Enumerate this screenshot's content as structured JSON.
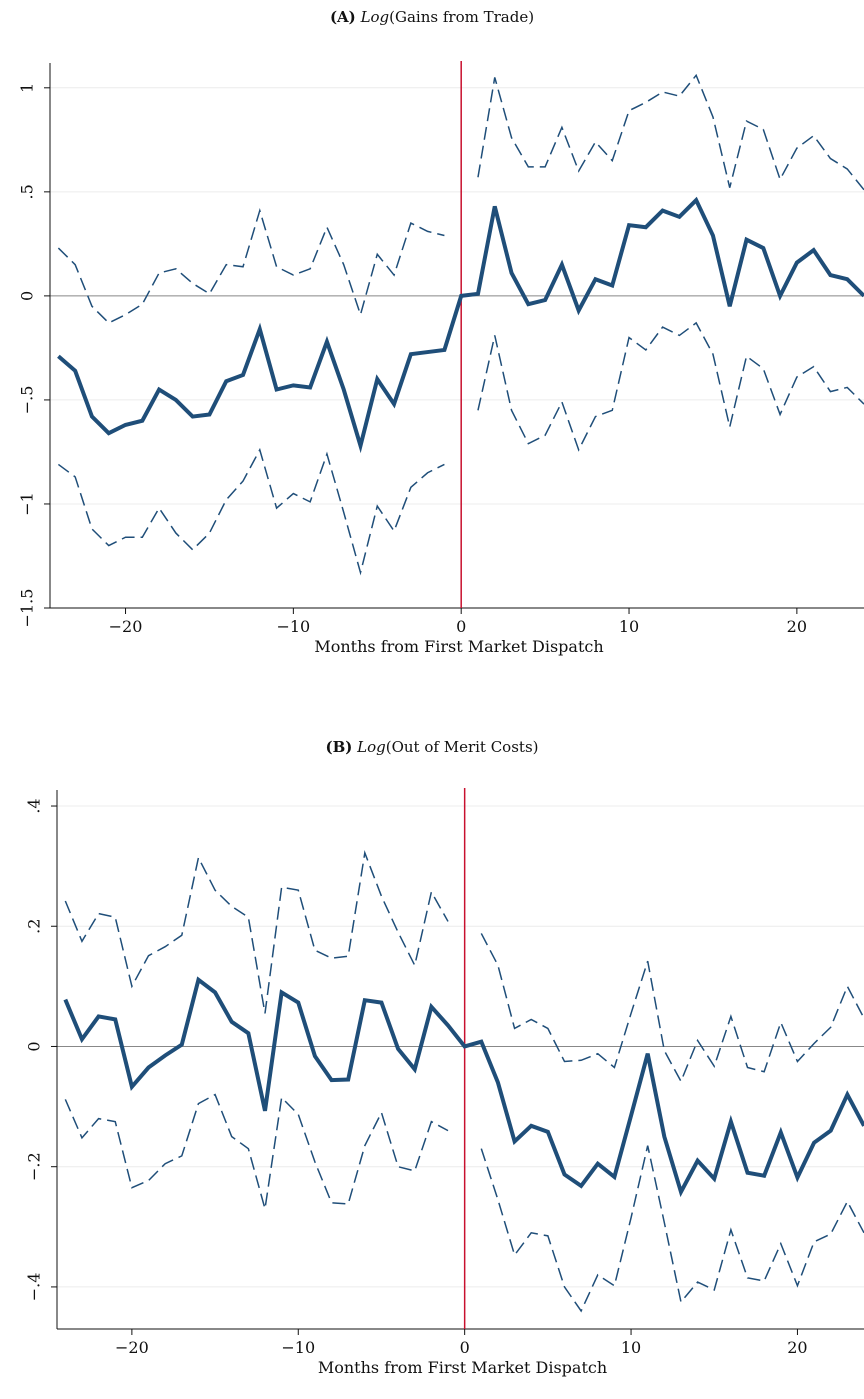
{
  "chart_data": [
    {
      "type": "line",
      "panel_letter": "(A)",
      "title_log": "Log",
      "title_rest": "(Gains from Trade)",
      "xlabel": "Months from First Market Dispatch",
      "ylabel": "",
      "xlim": [
        -24.5,
        24
      ],
      "ylim": [
        -1.5,
        1.1
      ],
      "xticks": [
        -20,
        -10,
        0,
        10,
        20
      ],
      "xtick_labels": [
        "−20",
        "−10",
        "0",
        "10",
        "20"
      ],
      "yticks": [
        -1.5,
        -1,
        -0.5,
        0,
        0.5,
        1
      ],
      "ytick_labels": [
        "−1.5",
        "−1",
        "−.5",
        "0",
        ".5",
        "1"
      ],
      "vline_x": 0,
      "series": [
        {
          "role": "estimate",
          "x": [
            -24,
            -23,
            -22,
            -21,
            -20,
            -19,
            -18,
            -17,
            -16,
            -15,
            -14,
            -13,
            -12,
            -11,
            -10,
            -9,
            -8,
            -7,
            -6,
            -5,
            -4,
            -3,
            -2,
            -1,
            0,
            1,
            2,
            3,
            4,
            5,
            6,
            7,
            8,
            9,
            10,
            11,
            12,
            13,
            14,
            15,
            16,
            17,
            18,
            19,
            20,
            21,
            22,
            23,
            24
          ],
          "values": [
            -0.29,
            -0.36,
            -0.58,
            -0.66,
            -0.62,
            -0.6,
            -0.45,
            -0.5,
            -0.58,
            -0.57,
            -0.41,
            -0.38,
            -0.16,
            -0.45,
            -0.43,
            -0.44,
            -0.22,
            -0.45,
            -0.72,
            -0.4,
            -0.52,
            -0.28,
            -0.27,
            -0.26,
            0,
            0.01,
            0.43,
            0.11,
            -0.04,
            -0.02,
            0.15,
            -0.07,
            0.08,
            0.05,
            0.34,
            0.33,
            0.41,
            0.38,
            0.46,
            0.29,
            -0.05,
            0.27,
            0.23,
            0.0,
            0.16,
            0.22,
            0.1,
            0.08,
            0.0
          ]
        },
        {
          "role": "upper",
          "x": [
            -24,
            -23,
            -22,
            -21,
            -20,
            -19,
            -18,
            -17,
            -16,
            -15,
            -14,
            -13,
            -12,
            -11,
            -10,
            -9,
            -8,
            -7,
            -6,
            -5,
            -4,
            -3,
            -2,
            -1,
            null,
            1,
            2,
            3,
            4,
            5,
            6,
            7,
            8,
            9,
            10,
            11,
            12,
            13,
            14,
            15,
            16,
            17,
            18,
            19,
            20,
            21,
            22,
            23,
            24
          ],
          "values": [
            0.23,
            0.15,
            -0.05,
            -0.13,
            -0.09,
            -0.04,
            0.11,
            0.13,
            0.06,
            0.01,
            0.15,
            0.14,
            0.41,
            0.14,
            0.1,
            0.13,
            0.33,
            0.15,
            -0.09,
            0.2,
            0.1,
            0.35,
            0.31,
            0.29,
            null,
            0.57,
            1.05,
            0.76,
            0.62,
            0.62,
            0.81,
            0.6,
            0.74,
            0.65,
            0.89,
            0.93,
            0.98,
            0.96,
            1.06,
            0.86,
            0.52,
            0.84,
            0.8,
            0.56,
            0.71,
            0.77,
            0.66,
            0.61,
            0.51
          ]
        },
        {
          "role": "lower",
          "x": [
            -24,
            -23,
            -22,
            -21,
            -20,
            -19,
            -18,
            -17,
            -16,
            -15,
            -14,
            -13,
            -12,
            -11,
            -10,
            -9,
            -8,
            -7,
            -6,
            -5,
            -4,
            -3,
            -2,
            -1,
            null,
            1,
            2,
            3,
            4,
            5,
            6,
            7,
            8,
            9,
            10,
            11,
            12,
            13,
            14,
            15,
            16,
            17,
            18,
            19,
            20,
            21,
            22,
            23,
            24
          ],
          "values": [
            -0.81,
            -0.87,
            -1.12,
            -1.2,
            -1.16,
            -1.16,
            -1.02,
            -1.14,
            -1.22,
            -1.14,
            -0.98,
            -0.89,
            -0.74,
            -1.02,
            -0.95,
            -0.99,
            -0.76,
            -1.04,
            -1.33,
            -1.01,
            -1.13,
            -0.92,
            -0.85,
            -0.81,
            null,
            -0.55,
            -0.19,
            -0.55,
            -0.71,
            -0.67,
            -0.51,
            -0.74,
            -0.58,
            -0.55,
            -0.2,
            -0.26,
            -0.15,
            -0.19,
            -0.13,
            -0.28,
            -0.63,
            -0.29,
            -0.35,
            -0.57,
            -0.39,
            -0.34,
            -0.46,
            -0.44,
            -0.52
          ]
        }
      ]
    },
    {
      "type": "line",
      "panel_letter": "(B)",
      "title_log": "Log",
      "title_rest": "(Out of Merit Costs)",
      "xlabel": "Months from First Market Dispatch",
      "ylabel": "",
      "xlim": [
        -24.5,
        24
      ],
      "ylim": [
        -0.47,
        0.42
      ],
      "xticks": [
        -20,
        -10,
        0,
        10,
        20
      ],
      "xtick_labels": [
        "−20",
        "−10",
        "0",
        "10",
        "20"
      ],
      "yticks": [
        -0.4,
        -0.2,
        0,
        0.2,
        0.4
      ],
      "ytick_labels": [
        "−.4",
        "−.2",
        "0",
        ".2",
        ".4"
      ],
      "vline_x": 0,
      "series": [
        {
          "role": "estimate",
          "x": [
            -24,
            -23,
            -22,
            -21,
            -20,
            -19,
            -18,
            -17,
            -16,
            -15,
            -14,
            -13,
            -12,
            -11,
            -10,
            -9,
            -8,
            -7,
            -6,
            -5,
            -4,
            -3,
            -2,
            -1,
            0,
            1,
            2,
            3,
            4,
            5,
            6,
            7,
            8,
            9,
            10,
            11,
            12,
            13,
            14,
            15,
            16,
            17,
            18,
            19,
            20,
            21,
            22,
            23,
            24
          ],
          "values": [
            0.078,
            0.012,
            0.05,
            0.045,
            -0.067,
            -0.035,
            -0.015,
            0.003,
            0.111,
            0.09,
            0.041,
            0.022,
            -0.107,
            0.09,
            0.073,
            -0.016,
            -0.056,
            -0.055,
            0.077,
            0.073,
            -0.004,
            -0.038,
            0.066,
            0.035,
            0.0,
            0.008,
            -0.06,
            -0.158,
            -0.132,
            -0.142,
            -0.213,
            -0.232,
            -0.195,
            -0.217,
            -0.115,
            -0.012,
            -0.15,
            -0.242,
            -0.19,
            -0.22,
            -0.125,
            -0.21,
            -0.215,
            -0.143,
            -0.218,
            -0.16,
            -0.14,
            -0.08,
            -0.132
          ]
        },
        {
          "role": "upper",
          "x": [
            -24,
            -23,
            -22,
            -21,
            -20,
            -19,
            -18,
            -17,
            -16,
            -15,
            -14,
            -13,
            -12,
            -11,
            -10,
            -9,
            -8,
            -7,
            -6,
            -5,
            -4,
            -3,
            -2,
            -1,
            null,
            1,
            2,
            3,
            4,
            5,
            6,
            7,
            8,
            9,
            10,
            11,
            12,
            13,
            14,
            15,
            16,
            17,
            18,
            19,
            20,
            21,
            22,
            23,
            24
          ],
          "values": [
            0.242,
            0.175,
            0.221,
            0.215,
            0.1,
            0.151,
            0.166,
            0.185,
            0.314,
            0.26,
            0.233,
            0.215,
            0.055,
            0.265,
            0.26,
            0.16,
            0.147,
            0.15,
            0.322,
            0.25,
            0.19,
            0.135,
            0.257,
            0.208,
            null,
            0.188,
            0.135,
            0.03,
            0.045,
            0.03,
            -0.025,
            -0.023,
            -0.012,
            -0.035,
            0.055,
            0.142,
            -0.007,
            -0.058,
            0.01,
            -0.033,
            0.05,
            -0.035,
            -0.042,
            0.04,
            -0.025,
            0.005,
            0.032,
            0.1,
            0.047
          ]
        },
        {
          "role": "lower",
          "x": [
            -24,
            -23,
            -22,
            -21,
            -20,
            -19,
            -18,
            -17,
            -16,
            -15,
            -14,
            -13,
            -12,
            -11,
            -10,
            -9,
            -8,
            -7,
            -6,
            -5,
            -4,
            -3,
            -2,
            -1,
            null,
            1,
            2,
            3,
            4,
            5,
            6,
            7,
            8,
            9,
            10,
            11,
            12,
            13,
            14,
            15,
            16,
            17,
            18,
            19,
            20,
            21,
            22,
            23,
            24
          ],
          "values": [
            -0.088,
            -0.152,
            -0.12,
            -0.125,
            -0.235,
            -0.223,
            -0.195,
            -0.182,
            -0.095,
            -0.08,
            -0.15,
            -0.17,
            -0.27,
            -0.085,
            -0.113,
            -0.192,
            -0.26,
            -0.262,
            -0.165,
            -0.11,
            -0.2,
            -0.207,
            -0.125,
            -0.14,
            null,
            -0.17,
            -0.255,
            -0.347,
            -0.31,
            -0.315,
            -0.4,
            -0.44,
            -0.38,
            -0.398,
            -0.285,
            -0.165,
            -0.293,
            -0.425,
            -0.392,
            -0.405,
            -0.305,
            -0.385,
            -0.39,
            -0.328,
            -0.398,
            -0.325,
            -0.312,
            -0.258,
            -0.31
          ]
        }
      ]
    }
  ]
}
